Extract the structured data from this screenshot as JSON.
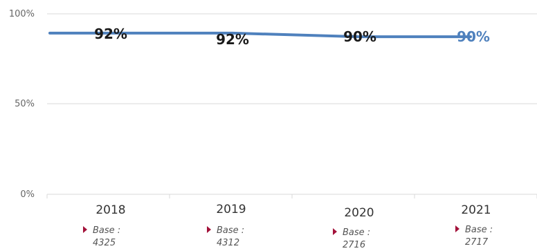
{
  "chart_data": {
    "type": "line",
    "categories": [
      "2018",
      "2019",
      "2020",
      "2021"
    ],
    "series": [
      {
        "values": [
          92,
          92,
          90,
          90
        ]
      }
    ],
    "data_labels": [
      "92%",
      "92%",
      "90%",
      "90%"
    ],
    "yticks": [
      "100%",
      "50%",
      "0%"
    ],
    "ylim": [
      0,
      100
    ],
    "grid": true,
    "legend": "none",
    "base_labels": [
      "Base :",
      "Base :",
      "Base :",
      "Base :"
    ],
    "bases": [
      "4325",
      "4312",
      "2716",
      "2717"
    ],
    "colors": {
      "line": "#4f81bd",
      "label": "#1a1a1a",
      "label_highlight": "#4f81bd",
      "marker": "#a3123a",
      "grid": "#d9d9d9"
    }
  }
}
